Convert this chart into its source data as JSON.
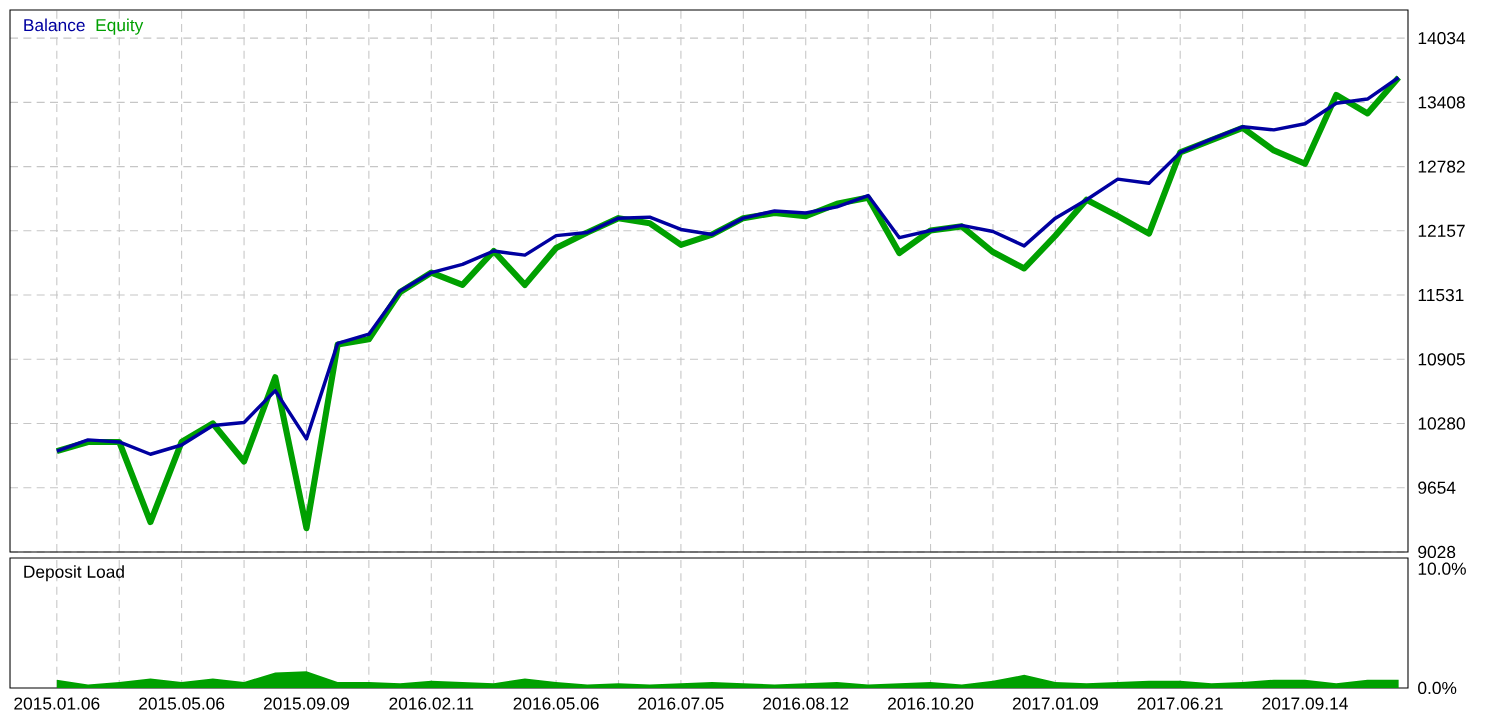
{
  "chart_data": [
    {
      "type": "line",
      "legend": "top left",
      "grid": true,
      "tick_labels": "y",
      "line_style": "solid",
      "marker": "none",
      "ylim": [
        9028,
        14308
      ],
      "yticks": [
        9028,
        9654,
        10280,
        10905,
        11531,
        12157,
        12782,
        13408,
        14034
      ],
      "categories": [
        "2015.01.06",
        null,
        null,
        null,
        "2015.05.06",
        null,
        null,
        null,
        "2015.09.09",
        null,
        null,
        null,
        "2016.02.11",
        null,
        null,
        null,
        "2016.05.06",
        null,
        null,
        null,
        "2016.07.05",
        null,
        null,
        null,
        "2016.08.12",
        null,
        null,
        null,
        "2016.10.20",
        null,
        null,
        null,
        "2017.01.09",
        null,
        null,
        null,
        "2017.06.21",
        null,
        null,
        null,
        "2017.09.14",
        null,
        null,
        null
      ],
      "series": [
        {
          "name": "Equity",
          "color": "#00a000",
          "values": [
            10010,
            10100,
            10100,
            9320,
            10100,
            10280,
            9910,
            10730,
            9260,
            11050,
            11100,
            11560,
            11750,
            11630,
            11960,
            11630,
            11990,
            12140,
            12280,
            12230,
            12020,
            12120,
            12280,
            12330,
            12300,
            12420,
            12480,
            11940,
            12160,
            12200,
            11950,
            11790,
            12110,
            12460,
            12300,
            12130,
            12920,
            13040,
            13160,
            12940,
            12810,
            13480,
            13300,
            13650
          ]
        },
        {
          "name": "Balance",
          "color": "#0000a0",
          "values": [
            10010,
            10120,
            10100,
            9980,
            10070,
            10260,
            10290,
            10600,
            10130,
            11060,
            11150,
            11570,
            11750,
            11830,
            11960,
            11920,
            12110,
            12140,
            12280,
            12290,
            12170,
            12120,
            12280,
            12350,
            12330,
            12390,
            12500,
            12090,
            12160,
            12210,
            12150,
            12010,
            12280,
            12460,
            12660,
            12620,
            12920,
            13050,
            13170,
            13140,
            13200,
            13400,
            13440,
            13650
          ]
        }
      ]
    },
    {
      "type": "area",
      "title": "Deposit Load",
      "grid": "x",
      "ylim": [
        0,
        10.9
      ],
      "yticks": [
        {
          "value": 0,
          "label": "0.0%"
        },
        {
          "value": 10,
          "label": "10.0%"
        }
      ],
      "color": "#00a000",
      "categories": [
        "2015.01.06",
        null,
        null,
        null,
        "2015.05.06",
        null,
        null,
        null,
        "2015.09.09",
        null,
        null,
        null,
        "2016.02.11",
        null,
        null,
        null,
        "2016.05.06",
        null,
        null,
        null,
        "2016.07.05",
        null,
        null,
        null,
        "2016.08.12",
        null,
        null,
        null,
        "2016.10.20",
        null,
        null,
        null,
        "2017.01.09",
        null,
        null,
        null,
        "2017.06.21",
        null,
        null,
        null,
        "2017.09.14",
        null,
        null,
        null
      ],
      "values": [
        0.7,
        0.3,
        0.5,
        0.8,
        0.5,
        0.8,
        0.5,
        1.3,
        1.4,
        0.5,
        0.5,
        0.4,
        0.6,
        0.5,
        0.4,
        0.8,
        0.5,
        0.3,
        0.4,
        0.3,
        0.4,
        0.5,
        0.4,
        0.3,
        0.4,
        0.5,
        0.3,
        0.4,
        0.5,
        0.3,
        0.6,
        1.1,
        0.5,
        0.4,
        0.5,
        0.6,
        0.6,
        0.4,
        0.5,
        0.7,
        0.7,
        0.4,
        0.7,
        0.7
      ]
    }
  ]
}
